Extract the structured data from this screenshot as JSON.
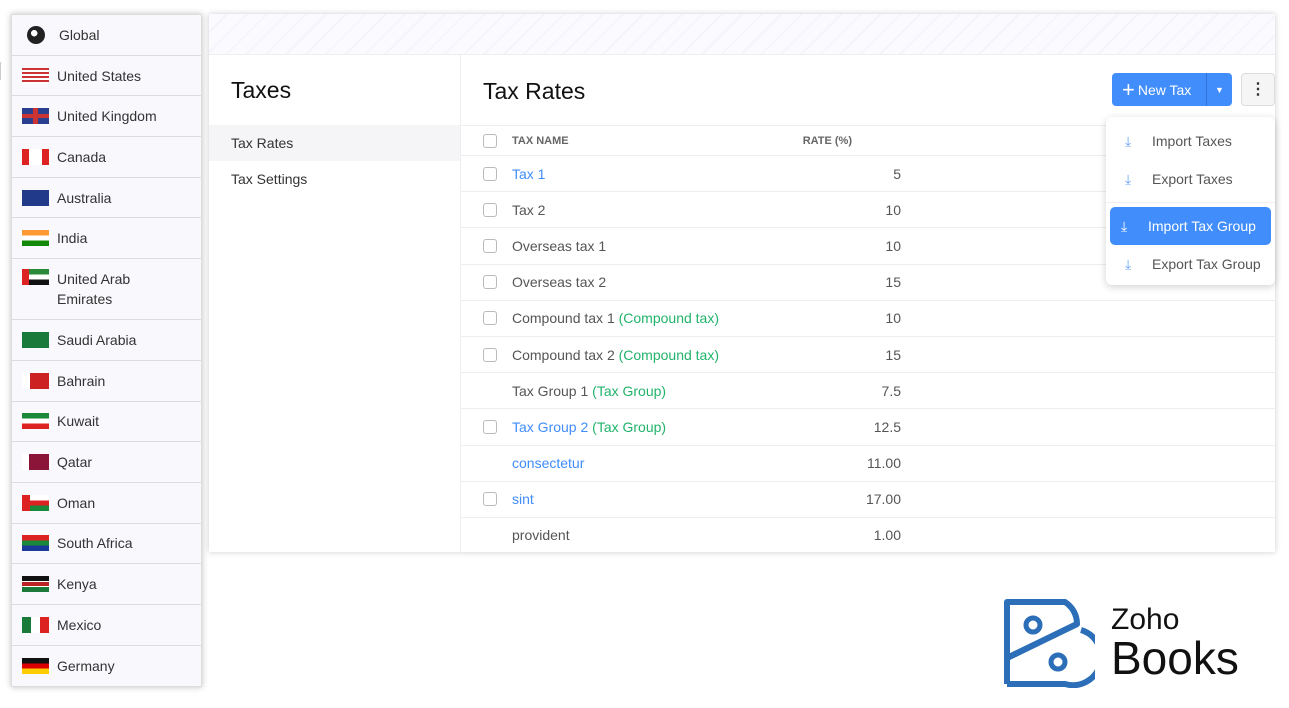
{
  "countries": [
    {
      "label": "Global",
      "flag": "globe"
    },
    {
      "label": "United States",
      "flag": "us"
    },
    {
      "label": "United Kingdom",
      "flag": "uk"
    },
    {
      "label": "Canada",
      "flag": "ca"
    },
    {
      "label": "Australia",
      "flag": "au"
    },
    {
      "label": "India",
      "flag": "in"
    },
    {
      "label": "United Arab Emirates",
      "flag": "ae"
    },
    {
      "label": "Saudi Arabia",
      "flag": "sa"
    },
    {
      "label": "Bahrain",
      "flag": "bh"
    },
    {
      "label": "Kuwait",
      "flag": "kw"
    },
    {
      "label": "Qatar",
      "flag": "qa"
    },
    {
      "label": "Oman",
      "flag": "om"
    },
    {
      "label": "South Africa",
      "flag": "za"
    },
    {
      "label": "Kenya",
      "flag": "ke"
    },
    {
      "label": "Mexico",
      "flag": "mx"
    },
    {
      "label": "Germany",
      "flag": "de"
    }
  ],
  "nav": {
    "title": "Taxes",
    "items": [
      "Tax Rates",
      "Tax Settings"
    ]
  },
  "main": {
    "title": "Tax Rates",
    "new_button": "New Tax",
    "more_icon": "vertical-ellipsis"
  },
  "table": {
    "headers": [
      "TAX NAME",
      "RATE (%)"
    ],
    "rows": [
      {
        "name": "Tax 1",
        "suffix": "",
        "rate": "5",
        "link": true,
        "checkbox": true
      },
      {
        "name": "Tax 2",
        "suffix": "",
        "rate": "10",
        "link": false,
        "checkbox": true
      },
      {
        "name": "Overseas tax 1",
        "suffix": "",
        "rate": "10",
        "link": false,
        "checkbox": true
      },
      {
        "name": "Overseas tax 2",
        "suffix": "",
        "rate": "15",
        "link": false,
        "checkbox": true
      },
      {
        "name": "Compound tax 1",
        "suffix": "(Compound tax)",
        "rate": "10",
        "link": false,
        "checkbox": true
      },
      {
        "name": "Compound tax 2",
        "suffix": "(Compound tax)",
        "rate": "15",
        "link": false,
        "checkbox": true
      },
      {
        "name": "Tax Group 1",
        "suffix": "(Tax Group)",
        "rate": "7.5",
        "link": false,
        "checkbox": false
      },
      {
        "name": "Tax Group 2",
        "suffix": "(Tax Group)",
        "rate": "12.5",
        "link": true,
        "checkbox": true
      },
      {
        "name": "consectetur",
        "suffix": "",
        "rate": "11.00",
        "link": true,
        "checkbox": false
      },
      {
        "name": "sint",
        "suffix": "",
        "rate": "17.00",
        "link": true,
        "checkbox": true
      },
      {
        "name": "provident",
        "suffix": "",
        "rate": "1.00",
        "link": false,
        "checkbox": false
      }
    ]
  },
  "menu": {
    "items": [
      "Import Taxes",
      "Export Taxes",
      "Import Tax Group",
      "Export Tax Group"
    ],
    "selected": "Import Tax Group"
  },
  "logo": {
    "line1": "Zoho",
    "line2": "Books"
  },
  "colors": {
    "accent": "#408dfb",
    "green": "#21b36b",
    "logo_blue": "#2c6fb8"
  }
}
